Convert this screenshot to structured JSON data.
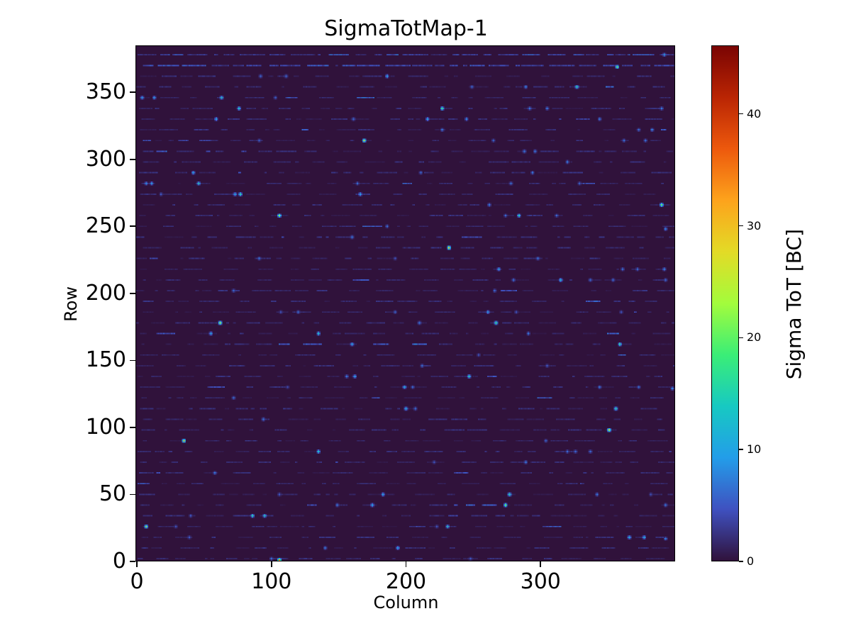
{
  "title": "SigmaTotMap-1",
  "axes": {
    "xlabel": "Column",
    "ylabel": "Row",
    "xlim": [
      0,
      400
    ],
    "ylim": [
      0,
      384
    ],
    "x_ticks": [
      0,
      100,
      200,
      300
    ],
    "y_ticks": [
      0,
      50,
      100,
      150,
      200,
      250,
      300,
      350
    ]
  },
  "colorbar": {
    "label": "Sigma ToT [BC]",
    "ticks": [
      0,
      10,
      20,
      30,
      40
    ],
    "vmin": 0,
    "vmax": 46,
    "colormap": "turbo",
    "stops": [
      [
        0.0,
        "#30123b"
      ],
      [
        0.1,
        "#3f51c0"
      ],
      [
        0.2,
        "#239de9"
      ],
      [
        0.3,
        "#17c9c2"
      ],
      [
        0.4,
        "#3aee77"
      ],
      [
        0.5,
        "#a3fc3c"
      ],
      [
        0.6,
        "#e3db26"
      ],
      [
        0.7,
        "#fda31c"
      ],
      [
        0.8,
        "#ed590d"
      ],
      [
        0.9,
        "#ba2503"
      ],
      [
        1.0,
        "#7a0403"
      ]
    ]
  },
  "chart_data": {
    "type": "heatmap",
    "title": "SigmaTotMap-1",
    "xlabel": "Column",
    "ylabel": "Row",
    "value_label": "Sigma ToT [BC]",
    "n_cols": 400,
    "n_rows": 384,
    "vmin": 0,
    "vmax": 46,
    "background_value": 0,
    "noise_bands": {
      "description": "faint dashed noise rows every 8 rows (rows 1,9,17,...,377), slightly above background",
      "row_spacing": 8,
      "row_offset": 1,
      "seed": 1337,
      "value_range": [
        0.5,
        2.2
      ],
      "strong_rows": [
        369,
        377
      ],
      "strong_value_range": [
        2.0,
        5.5
      ]
    },
    "segments": [
      {
        "row": 313,
        "col_start": 47,
        "col_end": 56,
        "value": 4
      }
    ],
    "points": [
      [
        392,
        377,
        12
      ],
      [
        357,
        368,
        20
      ],
      [
        92,
        361,
        6
      ],
      [
        111,
        361,
        6
      ],
      [
        186,
        361,
        11
      ],
      [
        249,
        353,
        6
      ],
      [
        289,
        353,
        8
      ],
      [
        327,
        353,
        16
      ],
      [
        4,
        345,
        11
      ],
      [
        13,
        345,
        11
      ],
      [
        63,
        345,
        15
      ],
      [
        103,
        345,
        6
      ],
      [
        76,
        337,
        14
      ],
      [
        227,
        337,
        18
      ],
      [
        292,
        337,
        7
      ],
      [
        305,
        337,
        7
      ],
      [
        390,
        337,
        7
      ],
      [
        59,
        329,
        11
      ],
      [
        161,
        329,
        6
      ],
      [
        216,
        329,
        11
      ],
      [
        245,
        329,
        8
      ],
      [
        344,
        329,
        7
      ],
      [
        227,
        321,
        7
      ],
      [
        373,
        321,
        7
      ],
      [
        383,
        321,
        8
      ],
      [
        91,
        313,
        6
      ],
      [
        169,
        313,
        28
      ],
      [
        265,
        313,
        7
      ],
      [
        362,
        313,
        7
      ],
      [
        378,
        313,
        8
      ],
      [
        288,
        305,
        7
      ],
      [
        296,
        305,
        7
      ],
      [
        320,
        297,
        7
      ],
      [
        42,
        289,
        11
      ],
      [
        211,
        289,
        6
      ],
      [
        294,
        289,
        7
      ],
      [
        7,
        281,
        11
      ],
      [
        11,
        281,
        11
      ],
      [
        46,
        281,
        17
      ],
      [
        164,
        281,
        7
      ],
      [
        278,
        281,
        7
      ],
      [
        329,
        281,
        7
      ],
      [
        18,
        273,
        5
      ],
      [
        73,
        273,
        11
      ],
      [
        77,
        273,
        16
      ],
      [
        166,
        273,
        11
      ],
      [
        262,
        265,
        7
      ],
      [
        390,
        265,
        20
      ],
      [
        106,
        257,
        22
      ],
      [
        274,
        257,
        6
      ],
      [
        284,
        257,
        15
      ],
      [
        312,
        257,
        6
      ],
      [
        186,
        249,
        7
      ],
      [
        393,
        247,
        8
      ],
      [
        160,
        241,
        7
      ],
      [
        232,
        233,
        30
      ],
      [
        91,
        225,
        7
      ],
      [
        192,
        225,
        5
      ],
      [
        298,
        225,
        7
      ],
      [
        269,
        217,
        12
      ],
      [
        361,
        217,
        7
      ],
      [
        372,
        217,
        7
      ],
      [
        392,
        217,
        10
      ],
      [
        280,
        209,
        7
      ],
      [
        315,
        209,
        13
      ],
      [
        337,
        209,
        6
      ],
      [
        354,
        209,
        6
      ],
      [
        393,
        209,
        6
      ],
      [
        72,
        201,
        6
      ],
      [
        266,
        201,
        6
      ],
      [
        107,
        185,
        5
      ],
      [
        120,
        185,
        7
      ],
      [
        192,
        185,
        7
      ],
      [
        261,
        185,
        11
      ],
      [
        282,
        185,
        5
      ],
      [
        360,
        185,
        5
      ],
      [
        62,
        177,
        24
      ],
      [
        210,
        177,
        7
      ],
      [
        267,
        177,
        17
      ],
      [
        55,
        169,
        11
      ],
      [
        135,
        169,
        14
      ],
      [
        291,
        169,
        7
      ],
      [
        160,
        161,
        11
      ],
      [
        359,
        161,
        17
      ],
      [
        254,
        153,
        5
      ],
      [
        212,
        145,
        7
      ],
      [
        305,
        145,
        5
      ],
      [
        156,
        137,
        7
      ],
      [
        162,
        137,
        11
      ],
      [
        247,
        137,
        15
      ],
      [
        112,
        129,
        4
      ],
      [
        199,
        129,
        12
      ],
      [
        205,
        129,
        6
      ],
      [
        344,
        129,
        7
      ],
      [
        373,
        129,
        7
      ],
      [
        398,
        128,
        8
      ],
      [
        72,
        121,
        7
      ],
      [
        200,
        113,
        12
      ],
      [
        207,
        113,
        7
      ],
      [
        356,
        113,
        16
      ],
      [
        94,
        105,
        7
      ],
      [
        351,
        97,
        26
      ],
      [
        35,
        89,
        30
      ],
      [
        304,
        89,
        7
      ],
      [
        135,
        81,
        14
      ],
      [
        320,
        81,
        6
      ],
      [
        326,
        81,
        6
      ],
      [
        337,
        81,
        6
      ],
      [
        221,
        73,
        5
      ],
      [
        289,
        73,
        7
      ],
      [
        58,
        65,
        7
      ],
      [
        106,
        49,
        5
      ],
      [
        183,
        49,
        11
      ],
      [
        277,
        49,
        16
      ],
      [
        342,
        49,
        7
      ],
      [
        382,
        49,
        5
      ],
      [
        149,
        41,
        7
      ],
      [
        175,
        41,
        11
      ],
      [
        274,
        41,
        20
      ],
      [
        393,
        41,
        7
      ],
      [
        40,
        33,
        5
      ],
      [
        86,
        33,
        16
      ],
      [
        95,
        33,
        16
      ],
      [
        7,
        25,
        28
      ],
      [
        29,
        25,
        5
      ],
      [
        223,
        25,
        5
      ],
      [
        231,
        25,
        16
      ],
      [
        39,
        17,
        5
      ],
      [
        366,
        17,
        12
      ],
      [
        377,
        17,
        12
      ],
      [
        393,
        16,
        8
      ],
      [
        140,
        9,
        7
      ],
      [
        194,
        9,
        11
      ],
      [
        100,
        1,
        7
      ],
      [
        106,
        0,
        33
      ],
      [
        248,
        1,
        5
      ]
    ]
  }
}
